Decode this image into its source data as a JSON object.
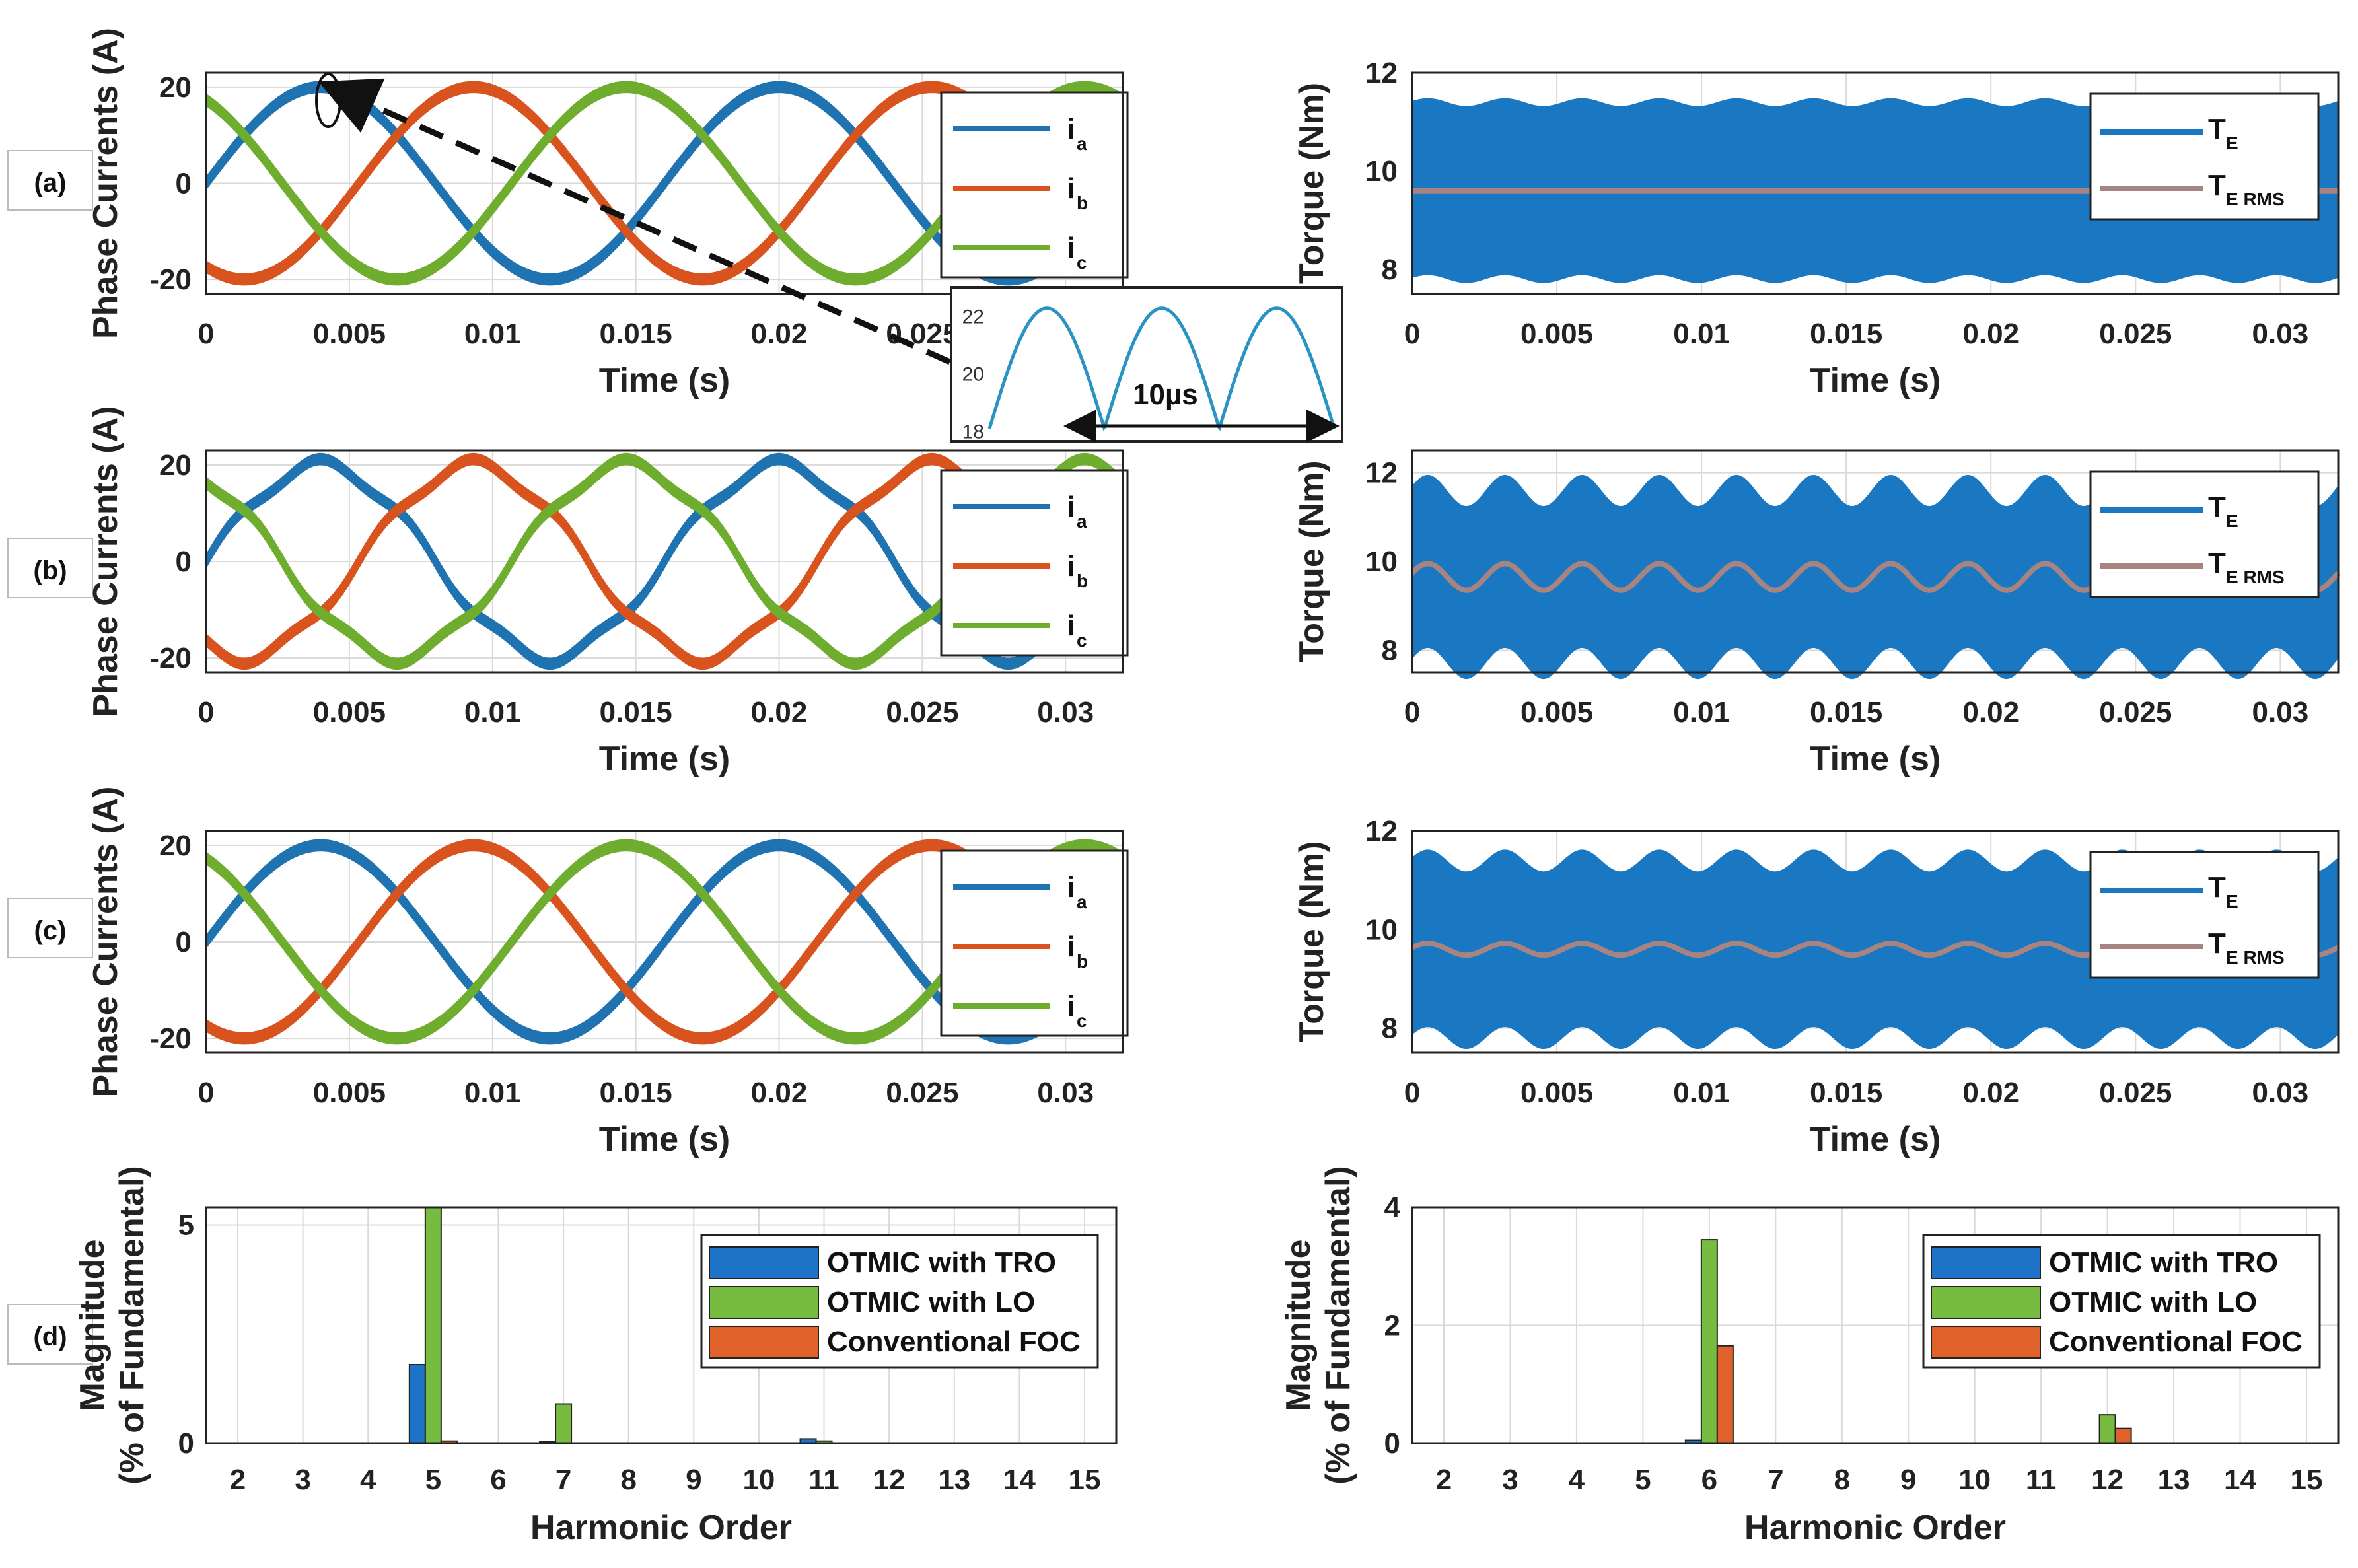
{
  "colors": {
    "ia": "#1f73b0",
    "ib": "#d9531e",
    "ic": "#6fad2f",
    "te": "#1a78c2",
    "te_rms": "#a88480",
    "bar_tro": "#1f73c7",
    "bar_lo": "#77bb41",
    "bar_foc": "#e0622a",
    "inset_line": "#2a93c4"
  },
  "row_labels": [
    "(a)",
    "(b)",
    "(c)",
    "(d)"
  ],
  "chart_data": [
    {
      "id": "a-currents",
      "type": "line",
      "title": "",
      "xlabel": "Time (s)",
      "ylabel": "Phase Currents (A)",
      "xlim": [
        0,
        0.032
      ],
      "ylim": [
        -23,
        23
      ],
      "xticks": [
        "0",
        "0.005",
        "0.01",
        "0.015",
        "0.02",
        "0.025",
        "0.03"
      ],
      "xtick_values": [
        0,
        0.005,
        0.01,
        0.015,
        0.02,
        0.025,
        0.03
      ],
      "yticks": [
        "-20",
        "0",
        "20"
      ],
      "ytick_values": [
        -20,
        0,
        20
      ],
      "amplitude": 20,
      "frequency_hz": 62.5,
      "ripple": 2,
      "legend": [
        "ia",
        "ib",
        "ic"
      ],
      "series": [
        {
          "name": "i_a",
          "label_main": "i",
          "label_sub": "a",
          "phase_deg": 0
        },
        {
          "name": "i_b",
          "label_main": "i",
          "label_sub": "b",
          "phase_deg": -120
        },
        {
          "name": "i_c",
          "label_main": "i",
          "label_sub": "c",
          "phase_deg": 120
        }
      ]
    },
    {
      "id": "a-torque",
      "type": "area",
      "xlabel": "Time (s)",
      "ylabel": "Torque (Nm)",
      "xlim": [
        0,
        0.032
      ],
      "ylim": [
        7.5,
        12
      ],
      "xticks": [
        "0",
        "0.005",
        "0.01",
        "0.015",
        "0.02",
        "0.025",
        "0.03"
      ],
      "xtick_values": [
        0,
        0.005,
        0.01,
        0.015,
        0.02,
        0.025,
        0.03
      ],
      "yticks": [
        "8",
        "10",
        "12"
      ],
      "ytick_values": [
        8,
        10,
        12
      ],
      "mean": 9.6,
      "band_half": 1.8,
      "ripple_amp": 0.08,
      "ripple_cycles": 12,
      "rms_ripple": 0.0,
      "series": [
        {
          "name": "T_E",
          "label_main": "T",
          "label_sub": "E"
        },
        {
          "name": "T_E RMS",
          "label_main": "T",
          "label_sub": "E RMS"
        }
      ]
    },
    {
      "id": "b-currents",
      "type": "line",
      "xlabel": "Time (s)",
      "ylabel": "Phase Currents (A)",
      "xlim": [
        0,
        0.032
      ],
      "ylim": [
        -23,
        23
      ],
      "xticks": [
        "0",
        "0.005",
        "0.01",
        "0.015",
        "0.02",
        "0.025",
        "0.03"
      ],
      "xtick_values": [
        0,
        0.005,
        0.01,
        0.015,
        0.02,
        0.025,
        0.03
      ],
      "yticks": [
        "-20",
        "0",
        "20"
      ],
      "ytick_values": [
        -20,
        0,
        20
      ],
      "amplitude": 20,
      "frequency_hz": 62.5,
      "ripple": 2,
      "harmonic": 0.06,
      "series": [
        {
          "name": "i_a",
          "label_main": "i",
          "label_sub": "a",
          "phase_deg": 0
        },
        {
          "name": "i_b",
          "label_main": "i",
          "label_sub": "b",
          "phase_deg": -120
        },
        {
          "name": "i_c",
          "label_main": "i",
          "label_sub": "c",
          "phase_deg": 120
        }
      ]
    },
    {
      "id": "b-torque",
      "type": "area",
      "xlabel": "Time (s)",
      "ylabel": "Torque (Nm)",
      "xlim": [
        0,
        0.032
      ],
      "ylim": [
        7.5,
        12.5
      ],
      "xticks": [
        "0",
        "0.005",
        "0.01",
        "0.015",
        "0.02",
        "0.025",
        "0.03"
      ],
      "xtick_values": [
        0,
        0.005,
        0.01,
        0.015,
        0.02,
        0.025,
        0.03
      ],
      "yticks": [
        "8",
        "10",
        "12"
      ],
      "ytick_values": [
        8,
        10,
        12
      ],
      "mean": 9.65,
      "band_half": 1.95,
      "ripple_amp": 0.35,
      "ripple_cycles": 12,
      "rms_ripple": 0.3,
      "series": [
        {
          "name": "T_E",
          "label_main": "T",
          "label_sub": "E"
        },
        {
          "name": "T_E RMS",
          "label_main": "T",
          "label_sub": "E RMS"
        }
      ]
    },
    {
      "id": "c-currents",
      "type": "line",
      "xlabel": "Time (s)",
      "ylabel": "Phase Currents (A)",
      "xlim": [
        0,
        0.032
      ],
      "ylim": [
        -23,
        23
      ],
      "xticks": [
        "0",
        "0.005",
        "0.01",
        "0.015",
        "0.02",
        "0.025",
        "0.03"
      ],
      "xtick_values": [
        0,
        0.005,
        0.01,
        0.015,
        0.02,
        0.025,
        0.03
      ],
      "yticks": [
        "-20",
        "0",
        "20"
      ],
      "ytick_values": [
        -20,
        0,
        20
      ],
      "amplitude": 20,
      "frequency_hz": 62.5,
      "ripple": 2,
      "series": [
        {
          "name": "i_a",
          "label_main": "i",
          "label_sub": "a",
          "phase_deg": 0
        },
        {
          "name": "i_b",
          "label_main": "i",
          "label_sub": "b",
          "phase_deg": -120
        },
        {
          "name": "i_c",
          "label_main": "i",
          "label_sub": "c",
          "phase_deg": 120
        }
      ]
    },
    {
      "id": "c-torque",
      "type": "area",
      "xlabel": "Time (s)",
      "ylabel": "Torque (Nm)",
      "xlim": [
        0,
        0.032
      ],
      "ylim": [
        7.5,
        12
      ],
      "xticks": [
        "0",
        "0.005",
        "0.01",
        "0.015",
        "0.02",
        "0.025",
        "0.03"
      ],
      "xtick_values": [
        0,
        0.005,
        0.01,
        0.015,
        0.02,
        0.025,
        0.03
      ],
      "yticks": [
        "8",
        "10",
        "12"
      ],
      "ytick_values": [
        8,
        10,
        12
      ],
      "mean": 9.6,
      "band_half": 1.8,
      "ripple_amp": 0.22,
      "ripple_cycles": 12,
      "rms_ripple": 0.12,
      "series": [
        {
          "name": "T_E",
          "label_main": "T",
          "label_sub": "E"
        },
        {
          "name": "T_E RMS",
          "label_main": "T",
          "label_sub": "E RMS"
        }
      ]
    },
    {
      "id": "d-current-harmonics",
      "type": "bar",
      "xlabel": "Harmonic Order",
      "ylabel_lines": [
        "Magnitude",
        "(% of Fundamental)"
      ],
      "categories": [
        "2",
        "3",
        "4",
        "5",
        "6",
        "7",
        "8",
        "9",
        "10",
        "11",
        "12",
        "13",
        "14",
        "15"
      ],
      "ylim": [
        0,
        5.4
      ],
      "yticks": [
        "0",
        "5"
      ],
      "ytick_values": [
        0,
        5
      ],
      "series": [
        {
          "name": "OTMIC with TRO",
          "values": [
            0,
            0,
            0,
            1.8,
            0,
            0.03,
            0,
            0,
            0,
            0.1,
            0,
            0,
            0,
            0
          ]
        },
        {
          "name": "OTMIC with LO",
          "values": [
            0,
            0,
            0,
            5.4,
            0,
            0.9,
            0,
            0,
            0,
            0.05,
            0,
            0,
            0,
            0
          ]
        },
        {
          "name": "Conventional FOC",
          "values": [
            0,
            0,
            0,
            0.05,
            0,
            0,
            0,
            0,
            0,
            0,
            0,
            0,
            0,
            0
          ]
        }
      ]
    },
    {
      "id": "d-torque-harmonics",
      "type": "bar",
      "xlabel": "Harmonic Order",
      "ylabel_lines": [
        "Magnitude",
        "(% of Fundamental)"
      ],
      "categories": [
        "2",
        "3",
        "4",
        "5",
        "6",
        "7",
        "8",
        "9",
        "10",
        "11",
        "12",
        "13",
        "14",
        "15"
      ],
      "ylim": [
        0,
        4
      ],
      "yticks": [
        "0",
        "2",
        "4"
      ],
      "ytick_values": [
        0,
        2,
        4
      ],
      "series": [
        {
          "name": "OTMIC with TRO",
          "values": [
            0,
            0,
            0,
            0,
            0.05,
            0,
            0,
            0,
            0,
            0,
            0,
            0,
            0,
            0
          ]
        },
        {
          "name": "OTMIC with LO",
          "values": [
            0,
            0,
            0,
            0,
            3.45,
            0,
            0,
            0,
            0,
            0,
            0.48,
            0,
            0,
            0
          ]
        },
        {
          "name": "Conventional FOC",
          "values": [
            0,
            0,
            0,
            0,
            1.65,
            0,
            0,
            0,
            0,
            0,
            0.25,
            0,
            0,
            0
          ]
        }
      ]
    }
  ],
  "inset": {
    "yticks": [
      "22",
      "20",
      "18"
    ],
    "ytick_values": [
      22,
      20,
      18
    ],
    "ylim": [
      17.8,
      22.8
    ],
    "annotation": "10µs",
    "peaks": 3
  }
}
